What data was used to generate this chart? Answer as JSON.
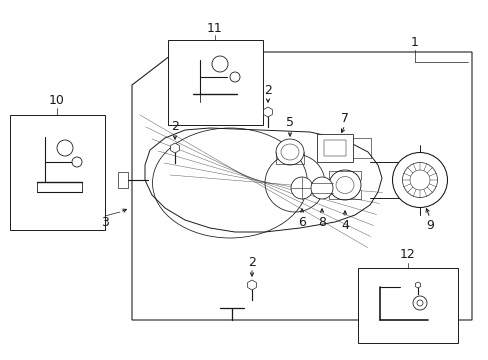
{
  "bg_color": "#ffffff",
  "line_color": "#1a1a1a",
  "fig_width": 4.89,
  "fig_height": 3.6,
  "dpi": 100,
  "lw": 0.7
}
